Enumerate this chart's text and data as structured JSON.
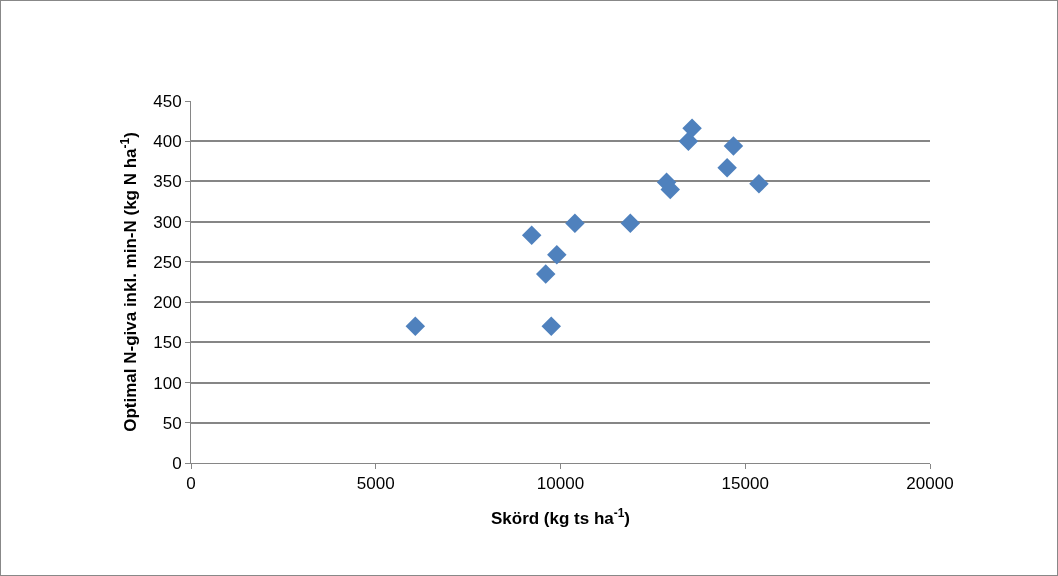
{
  "chart_data": {
    "type": "scatter",
    "xlabel": "Skörd (kg ts ha$^{-1}$)",
    "ylabel": "Optimal N-giva inkl. min-N (kg N ha$^{-1}$)",
    "x": [
      6070,
      9220,
      9900,
      9600,
      9750,
      10390,
      11890,
      12870,
      12970,
      13460,
      13560,
      14680,
      14510,
      15370
    ],
    "series": [
      {
        "color": "#4f81bd",
        "values": [
          170,
          283,
          259,
          235,
          170,
          298,
          298,
          349,
          340,
          400,
          416,
          394,
          367,
          347
        ]
      }
    ],
    "xlim": [
      0,
      20000
    ],
    "xticks": [
      0,
      5000,
      10000,
      15000,
      20000
    ],
    "ylim": [
      0,
      450
    ],
    "yticks": [
      0,
      50,
      100,
      150,
      200,
      250,
      300,
      350,
      400,
      450
    ],
    "grid": "y",
    "marker": "diamond"
  }
}
